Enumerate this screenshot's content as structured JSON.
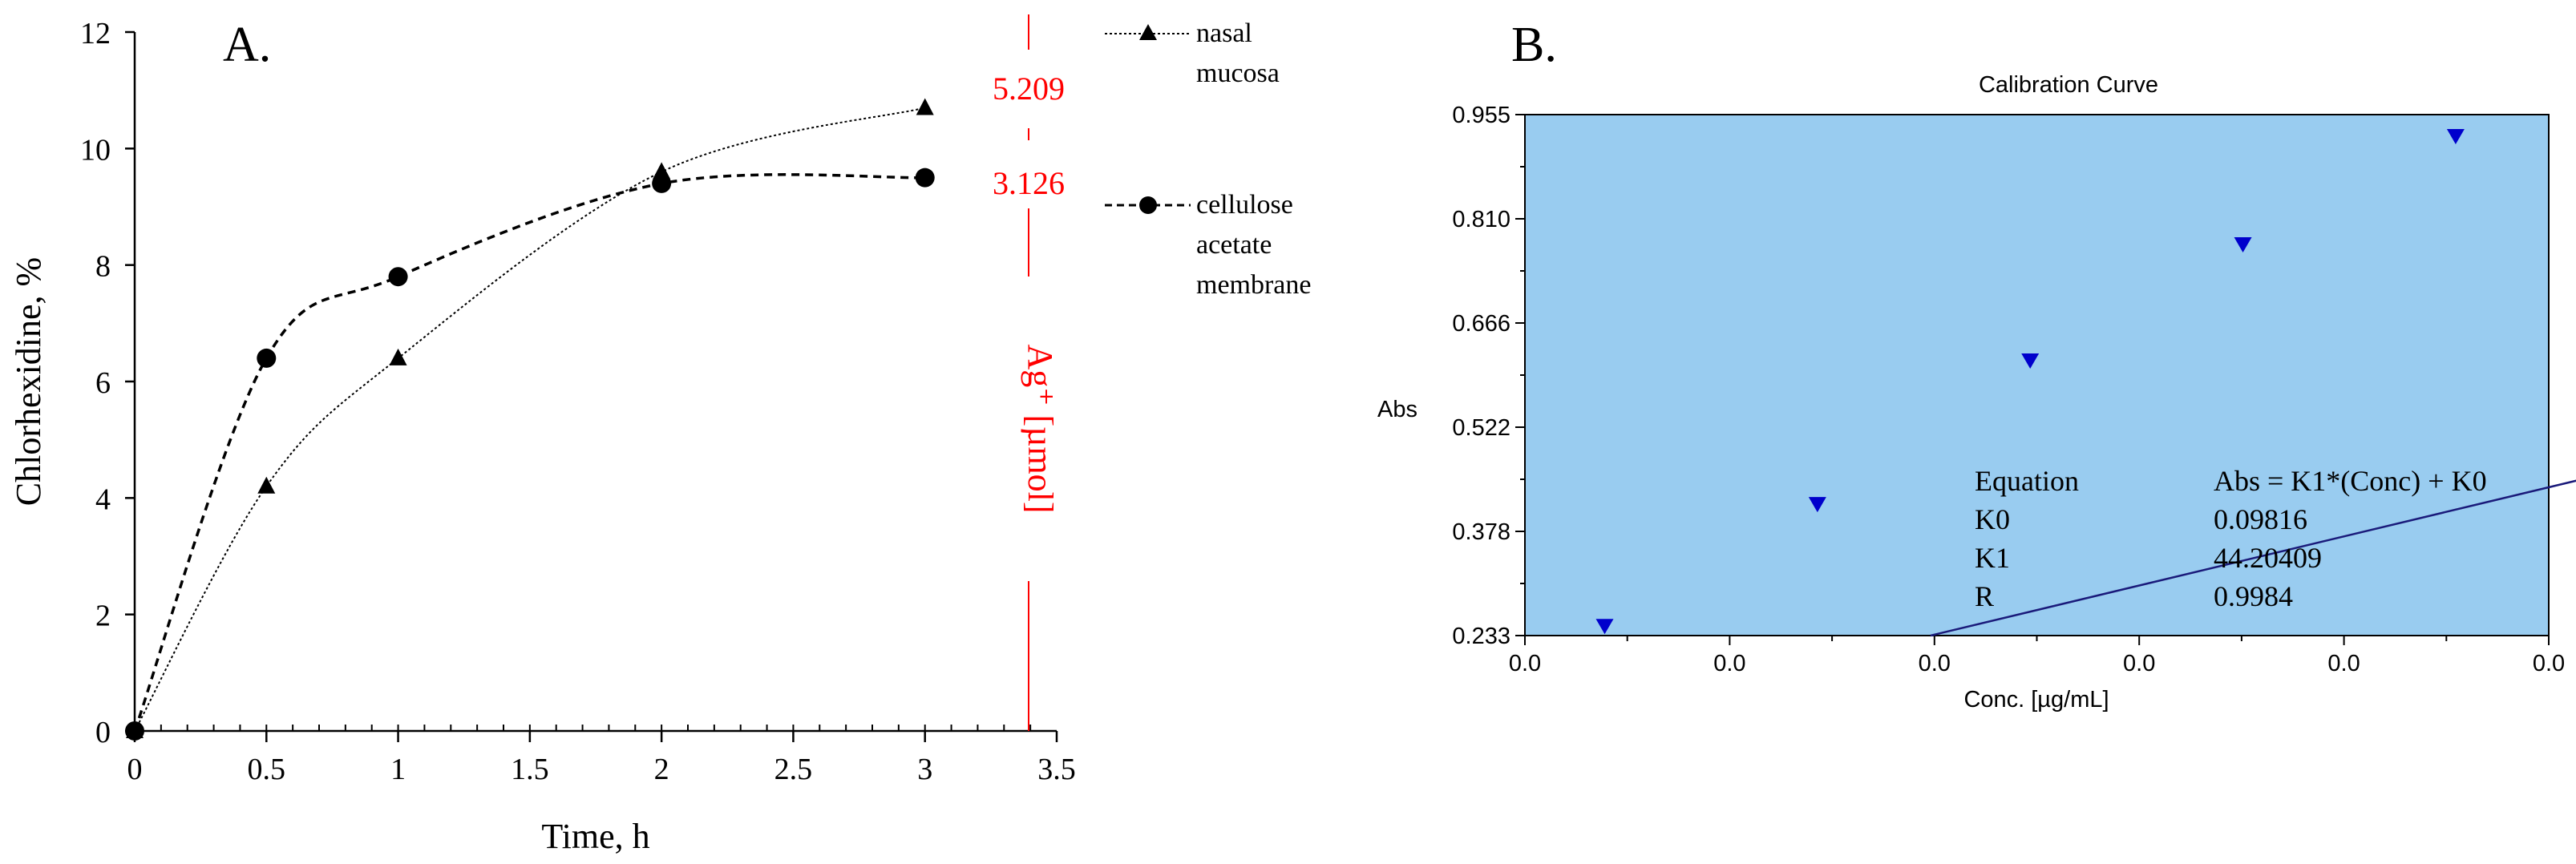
{
  "panels": {
    "a_label": "A.",
    "b_label": "B."
  },
  "chart_data": [
    {
      "type": "line",
      "title": "",
      "xlabel": "Time, h",
      "ylabel": "Chlorhexidine, %",
      "xlim": [
        0,
        3.5
      ],
      "ylim": [
        0,
        12
      ],
      "x_ticks": [
        "0",
        "0.5",
        "1",
        "1.5",
        "2",
        "2.5",
        "3",
        "3.5"
      ],
      "y_ticks": [
        "0",
        "2",
        "4",
        "6",
        "8",
        "10",
        "12"
      ],
      "grid": false,
      "legend_position": "right",
      "series": [
        {
          "name": "nasal mucosa",
          "name_lines": [
            "nasal",
            "mucosa"
          ],
          "marker": "triangle",
          "line_style": "dotted",
          "x": [
            0,
            0.5,
            1,
            2,
            3
          ],
          "y": [
            0,
            4.2,
            6.4,
            9.6,
            10.7
          ]
        },
        {
          "name": "cellulose acetate membrane",
          "name_lines": [
            "cellulose",
            "acetate",
            "membrane"
          ],
          "marker": "circle",
          "line_style": "dashed",
          "x": [
            0,
            0.5,
            1,
            2,
            3
          ],
          "y": [
            0,
            6.4,
            7.8,
            9.4,
            9.5
          ]
        }
      ],
      "secondary_axis": {
        "label": "Ag⁺ [µmol]",
        "color": "#ff0000",
        "values": [
          "5.209",
          "3.126"
        ]
      }
    },
    {
      "type": "scatter",
      "title": "Calibration Curve",
      "xlabel": "Conc. [µg/mL]",
      "ylabel": "Abs",
      "x_ticks": [
        "0.0",
        "0.0",
        "0.0",
        "0.0",
        "0.0",
        "0.0"
      ],
      "y_ticks": [
        "0.233",
        "0.378",
        "0.522",
        "0.666",
        "0.810",
        "0.955"
      ],
      "ylim": [
        0.233,
        0.955
      ],
      "background_color": "#99ccf0",
      "marker_color": "#0000cc",
      "line_color": "#1a1a7a",
      "x": [
        0.0006,
        0.0022,
        0.0038,
        0.0054,
        0.007
      ],
      "y": [
        0.246,
        0.415,
        0.614,
        0.775,
        0.925
      ],
      "fit": {
        "K0": 0.09816,
        "K1": 44.20409
      },
      "equation_table": [
        {
          "label": "Equation",
          "value": "Abs = K1*(Conc) + K0"
        },
        {
          "label": "K0",
          "value": "0.09816"
        },
        {
          "label": "K1",
          "value": "44.20409"
        },
        {
          "label": "R",
          "value": "0.9984"
        }
      ]
    }
  ]
}
